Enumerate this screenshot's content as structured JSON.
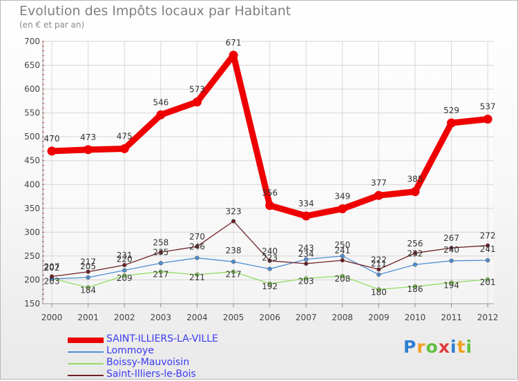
{
  "header": {
    "title": "Evolution des Impôts locaux par Habitant",
    "subtitle": "(en € et par an)"
  },
  "chart_data": {
    "type": "line",
    "title": "Evolution des Impôts locaux par Habitant",
    "ylabel": "(en € et par an)",
    "xlabel": "",
    "ylim": [
      150,
      700
    ],
    "yticks": [
      150,
      200,
      250,
      300,
      350,
      400,
      450,
      500,
      550,
      600,
      650,
      700
    ],
    "x": [
      "2000",
      "2001",
      "2002",
      "2003",
      "2004",
      "2005",
      "2006",
      "2007",
      "2008",
      "2009",
      "2010",
      "2011",
      "2012"
    ],
    "series": [
      {
        "name": "SAINT-ILLIERS-LA-VILLE",
        "color": "#ee0000",
        "values": [
          470,
          473,
          475,
          546,
          573,
          671,
          356,
          334,
          349,
          377,
          385,
          529,
          537
        ]
      },
      {
        "name": "Lommoye",
        "color": "#4a8fd4",
        "values": [
          202,
          205,
          220,
          235,
          246,
          238,
          223,
          243,
          250,
          211,
          232,
          240,
          241
        ]
      },
      {
        "name": "Boissy-Mauvoisin",
        "color": "#90dd60",
        "values": [
          203,
          184,
          209,
          217,
          211,
          217,
          192,
          203,
          208,
          180,
          186,
          194,
          201
        ]
      },
      {
        "name": "Saint-Illiers-le-Bois",
        "color": "#6e1f24",
        "values": [
          207,
          217,
          231,
          258,
          270,
          323,
          240,
          234,
          241,
          222,
          256,
          267,
          272
        ]
      }
    ],
    "legend_position": "bottom-left"
  },
  "logo": {
    "letters": [
      "P",
      "r",
      "o",
      "x",
      "i",
      "t",
      "i"
    ],
    "colors": [
      "#2f7fd0",
      "#f0a020",
      "#60c040",
      "#e03c3c",
      "#2f7fd0",
      "#f0a020",
      "#60c040"
    ]
  }
}
